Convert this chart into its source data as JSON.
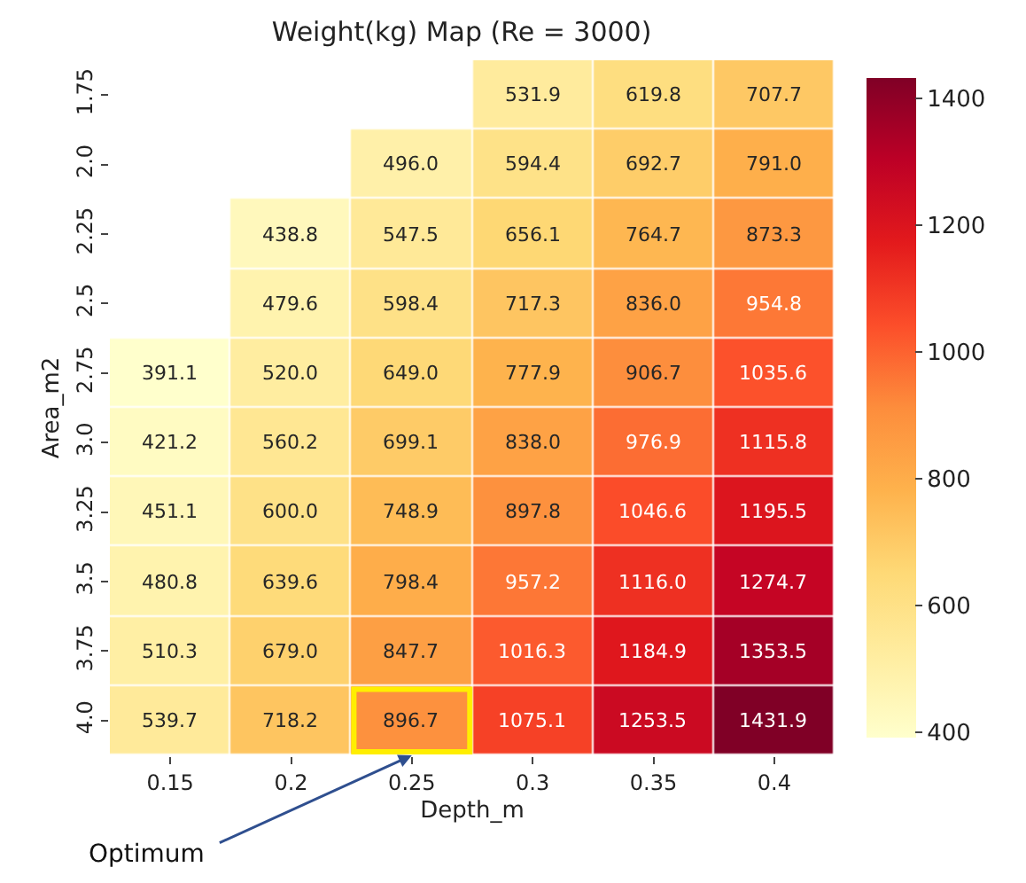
{
  "chart_data": {
    "type": "heatmap",
    "title": "Weight(kg) Map (Re = 3000)",
    "xlabel": "Depth_m",
    "ylabel": "Area_m2",
    "categories": [
      "0.15",
      "0.2",
      "0.25",
      "0.3",
      "0.35",
      "0.4"
    ],
    "y_categories": [
      "1.75",
      "2.0",
      "2.25",
      "2.5",
      "2.75",
      "3.0",
      "3.25",
      "3.5",
      "3.75",
      "4.0"
    ],
    "cells": [
      [
        null,
        null,
        null,
        531.9,
        619.8,
        707.7
      ],
      [
        null,
        null,
        496.0,
        594.4,
        692.7,
        791.0
      ],
      [
        null,
        438.8,
        547.5,
        656.1,
        764.7,
        873.3
      ],
      [
        null,
        479.6,
        598.4,
        717.3,
        836.0,
        954.8
      ],
      [
        391.1,
        520.0,
        649.0,
        777.9,
        906.7,
        1035.6
      ],
      [
        421.2,
        560.2,
        699.1,
        838.0,
        976.9,
        1115.8
      ],
      [
        451.1,
        600.0,
        748.9,
        897.8,
        1046.6,
        1195.5
      ],
      [
        480.8,
        639.6,
        798.4,
        957.2,
        1116.0,
        1274.7
      ],
      [
        510.3,
        679.0,
        847.7,
        1016.3,
        1184.9,
        1353.5
      ],
      [
        539.7,
        718.2,
        896.7,
        1075.1,
        1253.5,
        1431.9
      ]
    ],
    "cell_labels": [
      [
        null,
        null,
        null,
        "531.9",
        "619.8",
        "707.7"
      ],
      [
        null,
        null,
        "496.0",
        "594.4",
        "692.7",
        "791.0"
      ],
      [
        null,
        "438.8",
        "547.5",
        "656.1",
        "764.7",
        "873.3"
      ],
      [
        null,
        "479.6",
        "598.4",
        "717.3",
        "836.0",
        "954.8"
      ],
      [
        "391.1",
        "520.0",
        "649.0",
        "777.9",
        "906.7",
        "1035.6"
      ],
      [
        "421.2",
        "560.2",
        "699.1",
        "838.0",
        "976.9",
        "1115.8"
      ],
      [
        "451.1",
        "600.0",
        "748.9",
        "897.8",
        "1046.6",
        "1195.5"
      ],
      [
        "480.8",
        "639.6",
        "798.4",
        "957.2",
        "1116.0",
        "1274.7"
      ],
      [
        "510.3",
        "679.0",
        "847.7",
        "1016.3",
        "1184.9",
        "1353.5"
      ],
      [
        "539.7",
        "718.2",
        "896.7",
        "1075.1",
        "1253.5",
        "1431.9"
      ]
    ],
    "clim": [
      391.1,
      1431.9
    ],
    "cticks": [
      400,
      600,
      800,
      1000,
      1200,
      1400
    ],
    "annotations": [
      "Optimum"
    ]
  }
}
